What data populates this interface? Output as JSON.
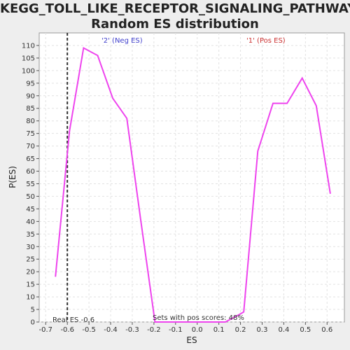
{
  "chart_data": {
    "type": "line",
    "title_line1": "KEGG_TOLL_LIKE_RECEPTOR_SIGNALING_PATHWAY:",
    "title_line2": "Random ES distribution",
    "xlabel": "ES",
    "ylabel": "P(ES)",
    "xlim": [
      -0.73,
      0.68
    ],
    "ylim": [
      0,
      115
    ],
    "x_ticks": [
      -0.7,
      -0.6,
      -0.5,
      -0.4,
      -0.3,
      -0.2,
      -0.1,
      0.0,
      0.1,
      0.2,
      0.3,
      0.4,
      0.5,
      0.6
    ],
    "x_tick_labels": [
      "-0.7",
      "-0.6",
      "-0.5",
      "-0.4",
      "-0.3",
      "-0.2",
      "-0.1",
      "0.0",
      "0.1",
      "0.2",
      "0.3",
      "0.4",
      "0.5",
      "0.6"
    ],
    "y_ticks": [
      0,
      5,
      10,
      15,
      20,
      25,
      30,
      35,
      40,
      45,
      50,
      55,
      60,
      65,
      70,
      75,
      80,
      85,
      90,
      95,
      100,
      105,
      110
    ],
    "grid": true,
    "series": [
      {
        "color": "#ee44ee",
        "x": [
          -0.655,
          -0.59,
          -0.525,
          -0.46,
          -0.39,
          -0.325,
          -0.26,
          -0.195,
          -0.13,
          -0.065,
          0.0,
          0.065,
          0.13,
          0.195,
          0.215,
          0.28,
          0.35,
          0.415,
          0.485,
          0.55,
          0.615
        ],
        "y": [
          18,
          76,
          109,
          106,
          89,
          81,
          40,
          0,
          0,
          0,
          0,
          0,
          0,
          3,
          4,
          68,
          87,
          87,
          97,
          86,
          51
        ]
      }
    ],
    "reference_line": {
      "x": -0.6,
      "style": "dashed",
      "color": "#333333"
    },
    "annotations": {
      "neg_label": "'2' (Neg ES)",
      "neg_color": "#4040cc",
      "pos_label": "'1' (Pos ES)",
      "pos_color": "#cc3333",
      "real_es": "Real ES -0.6",
      "pos_scores": "Sets with pos scores: 48%"
    }
  }
}
